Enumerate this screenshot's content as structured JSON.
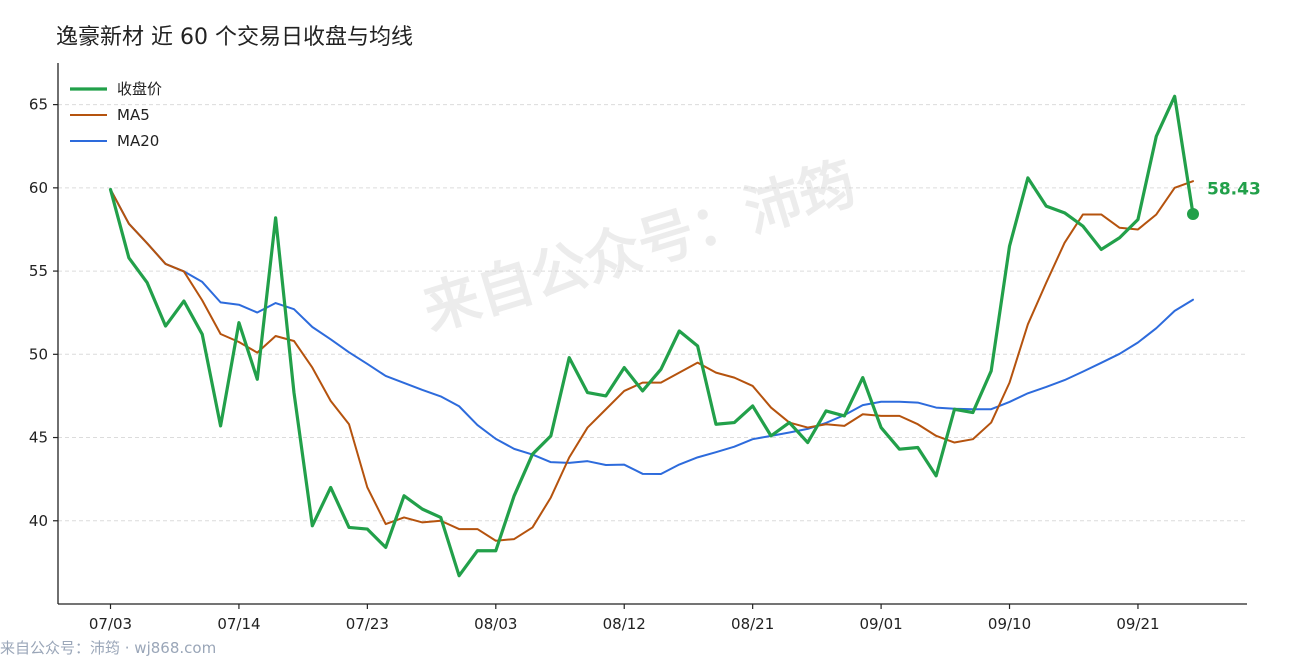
{
  "watermark": {
    "center_text": "来自公众号：沛筠",
    "footer_text": "来自公众号：沛筠 · wj868.com"
  },
  "chart_data": {
    "type": "line",
    "title": "逸豪新材 近 60 个交易日收盘与均线",
    "xlabel": "",
    "ylabel": "",
    "ylim": [
      35,
      67.5
    ],
    "yticks": [
      40,
      45,
      50,
      55,
      60,
      65
    ],
    "grid": "horizontal dashed",
    "legend_position": "top-left",
    "x_tick_labels": [
      {
        "label": "07/03",
        "index": 0
      },
      {
        "label": "07/14",
        "index": 7
      },
      {
        "label": "07/23",
        "index": 14
      },
      {
        "label": "08/03",
        "index": 21
      },
      {
        "label": "08/12",
        "index": 28
      },
      {
        "label": "08/21",
        "index": 35
      },
      {
        "label": "09/01",
        "index": 42
      },
      {
        "label": "09/10",
        "index": 49
      },
      {
        "label": "09/21",
        "index": 56
      }
    ],
    "series": [
      {
        "name": "收盘价",
        "color": "#22a04a",
        "width": 3.2,
        "values": [
          59.9,
          55.8,
          54.3,
          51.7,
          53.2,
          51.2,
          45.7,
          51.9,
          48.5,
          58.2,
          47.7,
          39.7,
          42.0,
          39.6,
          39.5,
          38.4,
          41.5,
          40.7,
          40.2,
          36.7,
          38.2,
          38.2,
          41.5,
          44.0,
          45.1,
          49.8,
          47.7,
          47.5,
          49.2,
          47.8,
          49.1,
          51.4,
          50.5,
          45.8,
          45.9,
          46.9,
          45.1,
          45.9,
          44.7,
          46.6,
          46.3,
          48.6,
          45.6,
          44.3,
          44.4,
          42.7,
          46.7,
          46.5,
          49.0,
          56.5,
          60.6,
          58.9,
          58.5,
          57.7,
          56.3,
          57.0,
          58.1,
          63.1,
          65.5,
          58.43
        ]
      },
      {
        "name": "MA5",
        "color": "#b5530e",
        "width": 2,
        "values": [
          59.9,
          57.85,
          56.67,
          55.43,
          54.98,
          53.24,
          51.22,
          50.74,
          50.1,
          51.1,
          50.8,
          49.2,
          47.2,
          45.8,
          42.0,
          39.8,
          40.2,
          39.9,
          40.0,
          39.5,
          39.5,
          38.8,
          38.9,
          39.6,
          41.4,
          43.8,
          45.6,
          46.7,
          47.8,
          48.3,
          48.3,
          48.9,
          49.5,
          48.9,
          48.6,
          48.1,
          46.8,
          45.9,
          45.6,
          45.8,
          45.7,
          46.4,
          46.3,
          46.3,
          45.8,
          45.1,
          44.7,
          44.9,
          45.9,
          48.3,
          51.8,
          54.3,
          56.7,
          58.4,
          58.4,
          57.6,
          57.5,
          58.4,
          60.0,
          60.4
        ]
      },
      {
        "name": "MA20",
        "color": "#2d6bdc",
        "width": 2,
        "values": [
          59.9,
          57.85,
          56.67,
          55.43,
          54.98,
          54.35,
          53.12,
          52.98,
          52.51,
          53.08,
          52.71,
          51.64,
          50.9,
          50.12,
          49.42,
          48.7,
          48.28,
          47.86,
          47.47,
          46.88,
          45.75,
          44.92,
          44.32,
          43.98,
          43.52,
          43.48,
          43.58,
          43.35,
          43.37,
          42.82,
          42.81,
          43.38,
          43.81,
          44.12,
          44.45,
          44.9,
          45.1,
          45.3,
          45.52,
          45.88,
          46.35,
          46.95,
          47.15,
          47.15,
          47.1,
          46.8,
          46.73,
          46.7,
          46.7,
          47.14,
          47.66,
          48.04,
          48.45,
          48.96,
          49.49,
          50.03,
          50.71,
          51.57,
          52.61,
          53.28
        ]
      }
    ],
    "end_label": "58.43"
  }
}
